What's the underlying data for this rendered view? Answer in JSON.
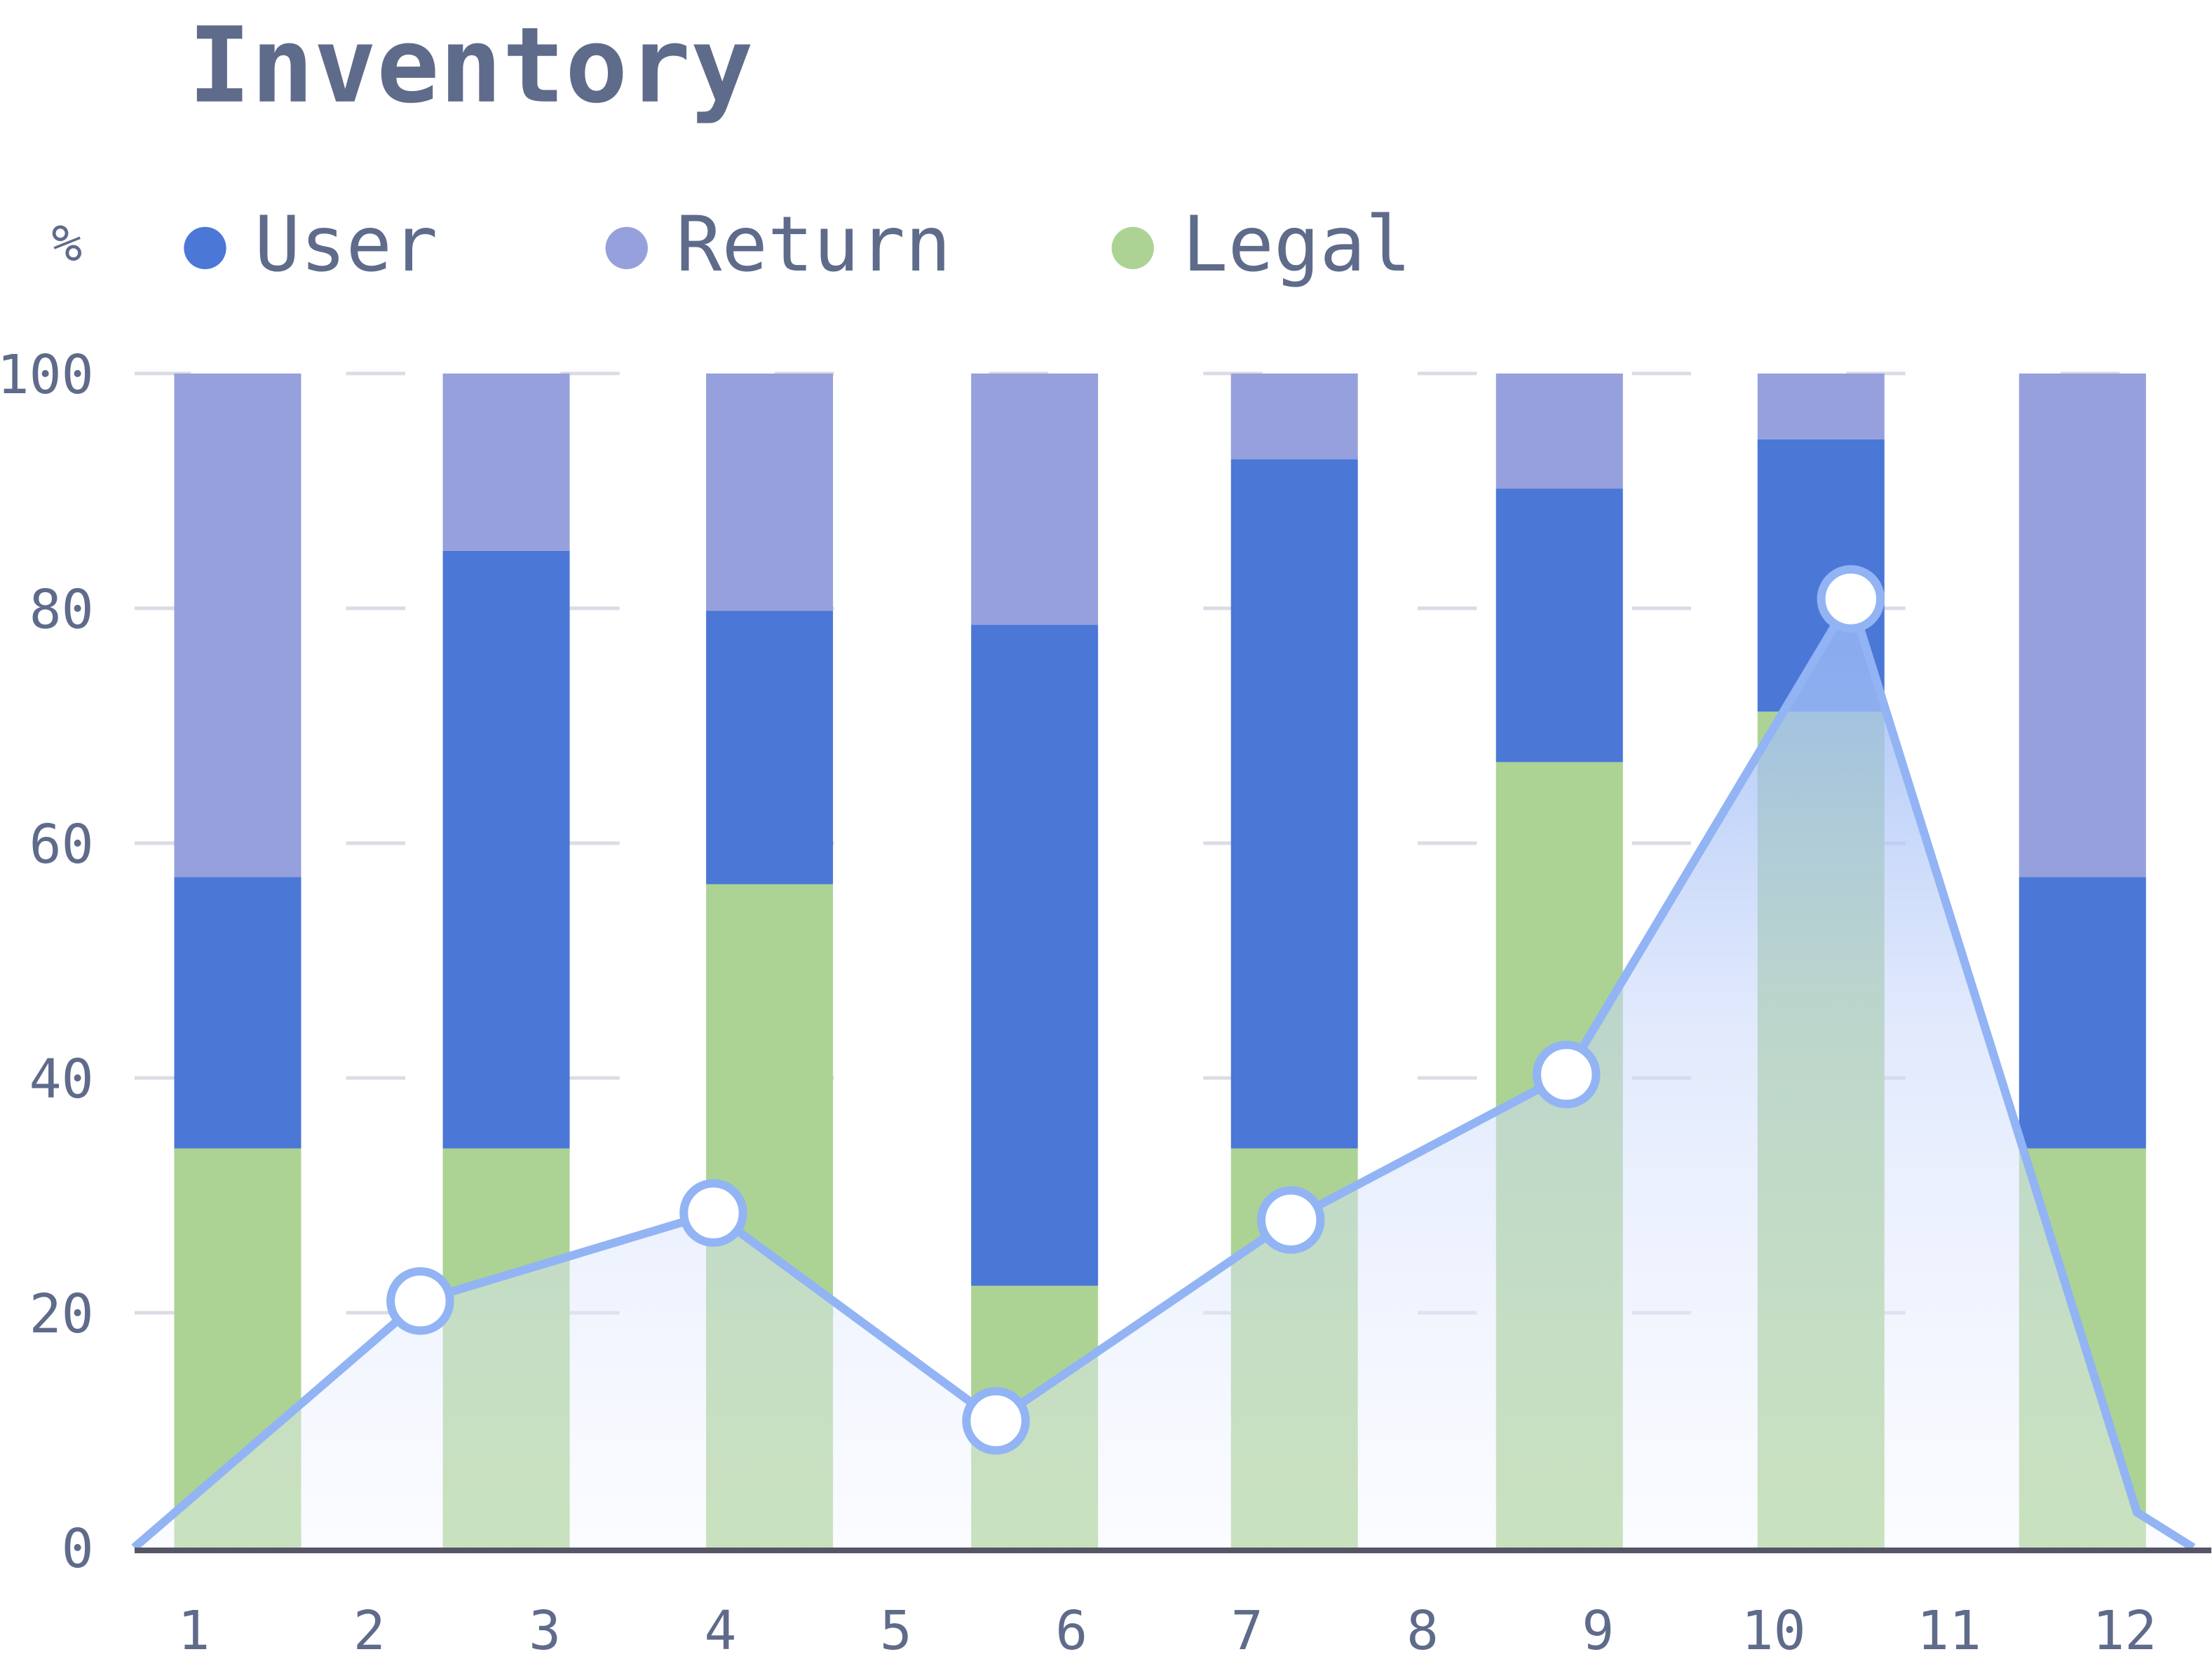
{
  "chart_data": {
    "type": "bar",
    "title": "Inventory",
    "ylabel": "%",
    "xlabel": "",
    "ylim": [
      0,
      100
    ],
    "yticks": [
      0,
      20,
      40,
      60,
      80,
      100
    ],
    "xticks": [
      "1",
      "2",
      "3",
      "4",
      "5",
      "6",
      "7",
      "8",
      "9",
      "10",
      "11",
      "12"
    ],
    "grid": true,
    "legend_position": "top-left",
    "legend": [
      {
        "name": "User",
        "color": "#4b77d6"
      },
      {
        "name": "Return",
        "color": "#95a0dc"
      },
      {
        "name": "Legal",
        "color": "#acd393"
      }
    ],
    "bars": {
      "x": [
        1.25,
        2.78,
        4.28,
        5.79,
        7.27,
        8.78,
        10.27,
        11.76
      ],
      "series": [
        {
          "name": "Legal",
          "color": "#acd393",
          "values": [
            34,
            34,
            56.5,
            22.3,
            34,
            66.9,
            71.2,
            34
          ]
        },
        {
          "name": "User",
          "color": "#4b77d6",
          "values": [
            23.1,
            50.9,
            23.3,
            56.3,
            58.7,
            23.3,
            23.2,
            23.1
          ]
        },
        {
          "name": "Return",
          "color": "#95a0dc",
          "values": [
            42.9,
            15.1,
            20.2,
            21.4,
            7.3,
            9.8,
            5.6,
            42.9
          ]
        }
      ]
    },
    "line": {
      "color": "#92b4f4",
      "x": [
        0.66,
        2.29,
        3.96,
        5.57,
        7.25,
        8.82,
        10.44,
        12.07,
        12.39
      ],
      "y": [
        0,
        21,
        28.5,
        10.8,
        27.9,
        40.3,
        80.8,
        3,
        0
      ],
      "markers": [
        false,
        true,
        true,
        true,
        true,
        true,
        true,
        false,
        false
      ]
    }
  }
}
